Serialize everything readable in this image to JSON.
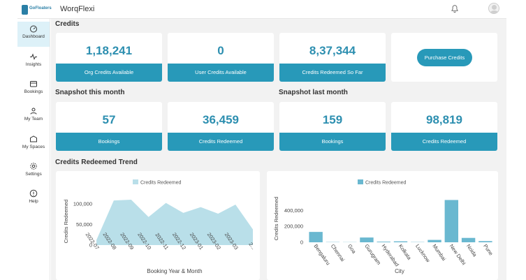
{
  "app": {
    "title": "WorqFlexi",
    "logo_text": "GoFloaters"
  },
  "sidebar": {
    "items": [
      {
        "label": "Dashboard",
        "icon": "dashboard-icon"
      },
      {
        "label": "Insights",
        "icon": "insights-icon"
      },
      {
        "label": "Bookings",
        "icon": "bookings-icon"
      },
      {
        "label": "My Team",
        "icon": "team-icon"
      },
      {
        "label": "My Spaces",
        "icon": "spaces-icon"
      },
      {
        "label": "Settings",
        "icon": "gear-icon"
      },
      {
        "label": "Help",
        "icon": "help-icon"
      }
    ]
  },
  "credits": {
    "title": "Credits",
    "cards": [
      {
        "value": "1,18,241",
        "label": "Org Credits Available"
      },
      {
        "value": "0",
        "label": "User Credits Available"
      },
      {
        "value": "8,37,344",
        "label": "Credits Redeemed So Far"
      }
    ],
    "purchase_label": "Purchase Credits"
  },
  "snapshot_this": {
    "title": "Snapshot this month",
    "cards": [
      {
        "value": "57",
        "label": "Bookings"
      },
      {
        "value": "36,459",
        "label": "Credits Redeemed"
      }
    ]
  },
  "snapshot_last": {
    "title": "Snapshot last month",
    "cards": [
      {
        "value": "159",
        "label": "Bookings"
      },
      {
        "value": "98,819",
        "label": "Credits Redeemed"
      }
    ]
  },
  "trend": {
    "title": "Credits Redeemed Trend"
  },
  "colors": {
    "accent": "#2899b9",
    "value_text": "#2d8fb0",
    "area_fill": "#b9dfe9",
    "bar_fill": "#6ab8d0"
  },
  "chart_data": [
    {
      "type": "area",
      "legend": "Credits Redeemed",
      "xlabel": "Booking Year &amp; Month",
      "ylabel": "Credits Redeemed",
      "ylim": [
        0,
        115000
      ],
      "yticks": [
        0,
        50000,
        100000
      ],
      "ytick_labels": [
        "0",
        "50,000",
        "100,000"
      ],
      "categories": [
        "2022-07",
        "2022-08",
        "2022-09",
        "2022-10",
        "2022-11",
        "2022-12",
        "2023-01",
        "2023-02",
        "2023-03",
        "2..."
      ],
      "x_tick_labels": [
        "2022-07",
        "2022-08",
        "2022-09",
        "2022-10",
        "2022-11",
        "2022-12",
        "2023-01",
        "2023-02",
        "2023-03",
        "2..."
      ],
      "values": [
        12000,
        108000,
        110000,
        68000,
        102000,
        78000,
        92000,
        76000,
        98000,
        38000
      ]
    },
    {
      "type": "bar",
      "legend": "Credits Redeemed",
      "xlabel": "City",
      "ylabel": "Credits Redeemed",
      "ylim": [
        0,
        560000
      ],
      "yticks": [
        0,
        200000,
        400000
      ],
      "ytick_labels": [
        "0",
        "200,000",
        "400,000"
      ],
      "categories": [
        "Bengaluru",
        "Chennai",
        "Goa",
        "Gurugram",
        "Hyderabad",
        "Kolkata",
        "Lucknow",
        "Mumbai",
        "New Delhi",
        "Noida",
        "Pune"
      ],
      "values": [
        130000,
        3000,
        2000,
        60000,
        8000,
        12000,
        3000,
        30000,
        530000,
        55000,
        15000
      ]
    }
  ]
}
